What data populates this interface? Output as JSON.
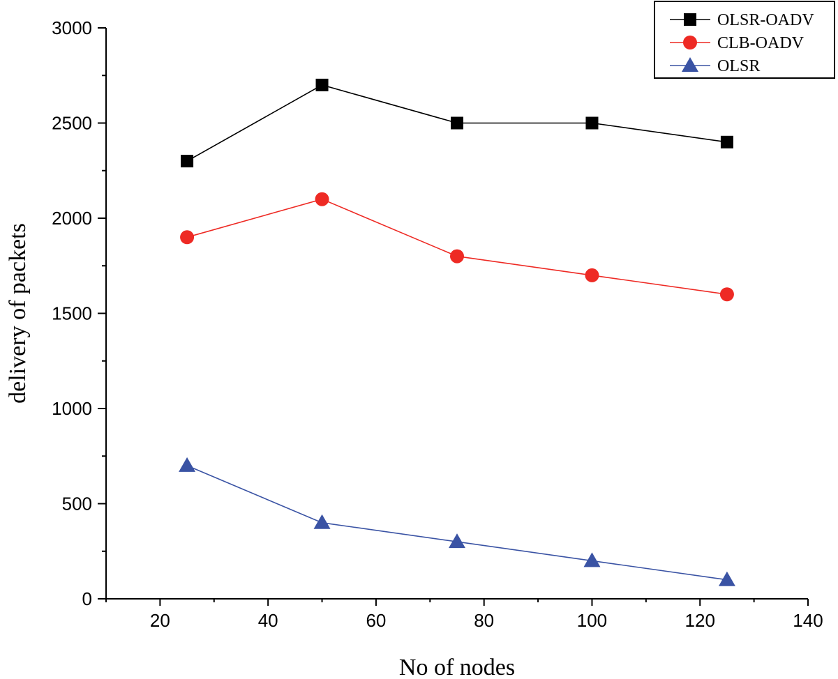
{
  "chart_data": {
    "type": "line",
    "title": "",
    "xlabel": "No of nodes",
    "ylabel": "delivery of packets",
    "xlim": [
      10,
      140
    ],
    "ylim": [
      0,
      3000
    ],
    "x_ticks": [
      20,
      40,
      60,
      80,
      100,
      120,
      140
    ],
    "y_ticks": [
      0,
      500,
      1000,
      1500,
      2000,
      2500,
      3000
    ],
    "grid": false,
    "legend_position": "top-right",
    "x": [
      25,
      50,
      75,
      100,
      125
    ],
    "series": [
      {
        "name": "OLSR-OADV",
        "values": [
          2300,
          2700,
          2500,
          2500,
          2400
        ],
        "color": "#000000",
        "marker": "square"
      },
      {
        "name": "CLB-OADV",
        "values": [
          1900,
          2100,
          1800,
          1700,
          1600
        ],
        "color": "#ee2a24",
        "marker": "circle"
      },
      {
        "name": "OLSR",
        "values": [
          700,
          400,
          300,
          200,
          100
        ],
        "color": "#3a53a4",
        "marker": "triangle"
      }
    ]
  }
}
